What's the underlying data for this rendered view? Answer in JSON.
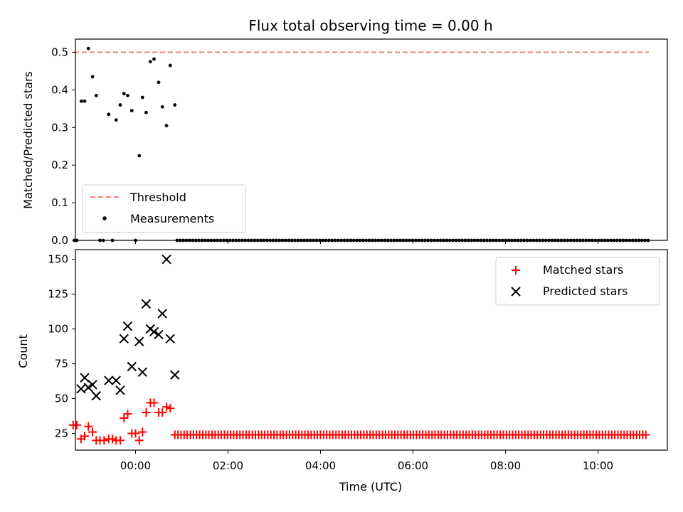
{
  "colors": {
    "threshold": "#f08080",
    "measurement": "#000000",
    "matched": "#ff0000",
    "predicted": "#000000"
  },
  "chart_data": [
    {
      "type": "scatter",
      "title": "Flux total observing time = 0.00 h",
      "xlabel": "",
      "ylabel": "Matched/Predicted stars",
      "xlim": [
        -1.3,
        11.5
      ],
      "ylim": [
        0,
        0.535
      ],
      "grid": false,
      "legend_position": "lower-left",
      "xticks": [
        0,
        2,
        4,
        6,
        8,
        10
      ],
      "yticks": [
        0.0,
        0.1,
        0.2,
        0.3,
        0.4,
        0.5
      ],
      "ytick_labels": [
        "0.0",
        "0.1",
        "0.2",
        "0.3",
        "0.4",
        "0.5"
      ],
      "threshold": {
        "name": "Threshold",
        "value": 0.5,
        "x": [
          -1.33,
          11.1
        ]
      },
      "series": [
        {
          "name": "Measurements",
          "points": [
            [
              -1.32,
              0.0
            ],
            [
              -1.27,
              0.0
            ],
            [
              -1.17,
              0.37
            ],
            [
              -1.1,
              0.37
            ],
            [
              -1.02,
              0.51
            ],
            [
              -0.93,
              0.435
            ],
            [
              -0.85,
              0.385
            ],
            [
              -0.77,
              0.0
            ],
            [
              -0.7,
              0.0
            ],
            [
              -0.58,
              0.335
            ],
            [
              -0.5,
              0.0
            ],
            [
              -0.42,
              0.32
            ],
            [
              -0.33,
              0.36
            ],
            [
              -0.25,
              0.39
            ],
            [
              -0.17,
              0.385
            ],
            [
              -0.08,
              0.345
            ],
            [
              0.0,
              0.0
            ],
            [
              0.08,
              0.225
            ],
            [
              0.15,
              0.38
            ],
            [
              0.23,
              0.34
            ],
            [
              0.32,
              0.475
            ],
            [
              0.4,
              0.482
            ],
            [
              0.5,
              0.42
            ],
            [
              0.58,
              0.355
            ],
            [
              0.67,
              0.305
            ],
            [
              0.75,
              0.465
            ],
            [
              0.85,
              0.36
            ]
          ],
          "zero_run": {
            "start": 0.9,
            "end": 11.1,
            "step": 0.067,
            "value": 0.0
          }
        }
      ]
    },
    {
      "type": "scatter",
      "title": "",
      "xlabel": "Time (UTC)",
      "ylabel": "Count",
      "xlim": [
        -1.3,
        11.5
      ],
      "ylim": [
        13,
        157
      ],
      "grid": false,
      "legend_position": "top-right",
      "xticks": [
        0,
        2,
        4,
        6,
        8,
        10
      ],
      "xtick_labels": [
        "00:00",
        "02:00",
        "04:00",
        "06:00",
        "08:00",
        "10:00"
      ],
      "yticks": [
        25,
        50,
        75,
        100,
        125,
        150
      ],
      "ytick_labels": [
        "25",
        "50",
        "75",
        "100",
        "125",
        "150"
      ],
      "series": [
        {
          "name": "Matched stars",
          "marker": "plus",
          "points": [
            [
              -1.35,
              31
            ],
            [
              -1.27,
              31
            ],
            [
              -1.18,
              21
            ],
            [
              -1.1,
              23
            ],
            [
              -1.02,
              30
            ],
            [
              -0.93,
              26
            ],
            [
              -0.85,
              20
            ],
            [
              -0.77,
              20
            ],
            [
              -0.68,
              20
            ],
            [
              -0.58,
              21
            ],
            [
              -0.5,
              21
            ],
            [
              -0.42,
              20
            ],
            [
              -0.33,
              20
            ],
            [
              -0.25,
              36
            ],
            [
              -0.17,
              39
            ],
            [
              -0.08,
              25
            ],
            [
              0.0,
              25
            ],
            [
              0.08,
              20
            ],
            [
              0.15,
              26
            ],
            [
              0.23,
              40
            ],
            [
              0.32,
              47
            ],
            [
              0.4,
              47
            ],
            [
              0.5,
              40
            ],
            [
              0.58,
              40
            ],
            [
              0.67,
              44
            ],
            [
              0.75,
              43
            ]
          ],
          "zero_run": {
            "start": 0.85,
            "end": 11.1,
            "step": 0.067,
            "value": 24
          }
        },
        {
          "name": "Predicted stars",
          "marker": "x",
          "points": [
            [
              -1.18,
              57
            ],
            [
              -1.1,
              65
            ],
            [
              -1.02,
              58
            ],
            [
              -0.93,
              60
            ],
            [
              -0.85,
              52
            ],
            [
              -0.58,
              63
            ],
            [
              -0.42,
              63
            ],
            [
              -0.33,
              56
            ],
            [
              -0.25,
              93
            ],
            [
              -0.17,
              102
            ],
            [
              -0.08,
              73
            ],
            [
              0.08,
              91
            ],
            [
              0.15,
              69
            ],
            [
              0.23,
              118
            ],
            [
              0.32,
              100
            ],
            [
              0.4,
              98
            ],
            [
              0.5,
              96
            ],
            [
              0.58,
              111
            ],
            [
              0.67,
              150
            ],
            [
              0.75,
              93
            ],
            [
              0.85,
              67
            ]
          ]
        }
      ]
    }
  ]
}
